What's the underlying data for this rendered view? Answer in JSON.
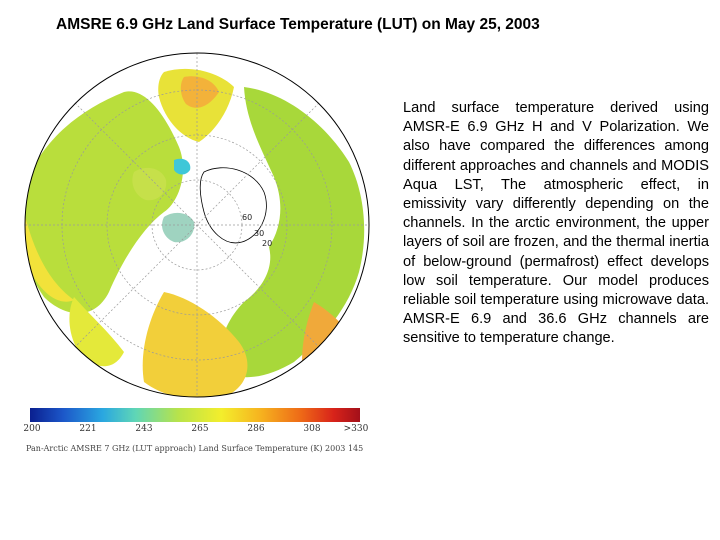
{
  "title": "AMSRE 6.9 GHz Land Surface Temperature (LUT) on May 25, 2003",
  "description": "Land surface temperature derived using AMSR-E 6.9 GHz H and V Polarization. We also have compared the differences among different approaches and channels and MODIS Aqua LST, The atmospheric effect, in emissivity vary differently depending on the channels. In the arctic environment, the upper layers of soil are frozen, and the thermal inertia of below-ground (permafrost) effect develops low soil temperature. Our model produces reliable soil temperature using microwave data. AMSR-E 6.9 and 36.6 GHz channels are sensitive to temperature change.",
  "map": {
    "latitude_labels": [
      "60",
      "30",
      "20"
    ],
    "colorbar": {
      "tick_labels": [
        "200",
        "221",
        "243",
        "265",
        "286",
        "308",
        ">330"
      ],
      "colors": [
        "#0a1f8f",
        "#2aa7e0",
        "#5fd6b6",
        "#b8e34a",
        "#f3ee2c",
        "#f6b21f",
        "#ee6a17",
        "#a3101a"
      ]
    },
    "caption": "Pan-Arctic AMSRE 7 GHz (LUT approach) Land Surface Temperature (K) 2003 145",
    "ocean_color": "#ffffff",
    "coast_color": "#000000",
    "grid_color": "#9a9a9a"
  }
}
